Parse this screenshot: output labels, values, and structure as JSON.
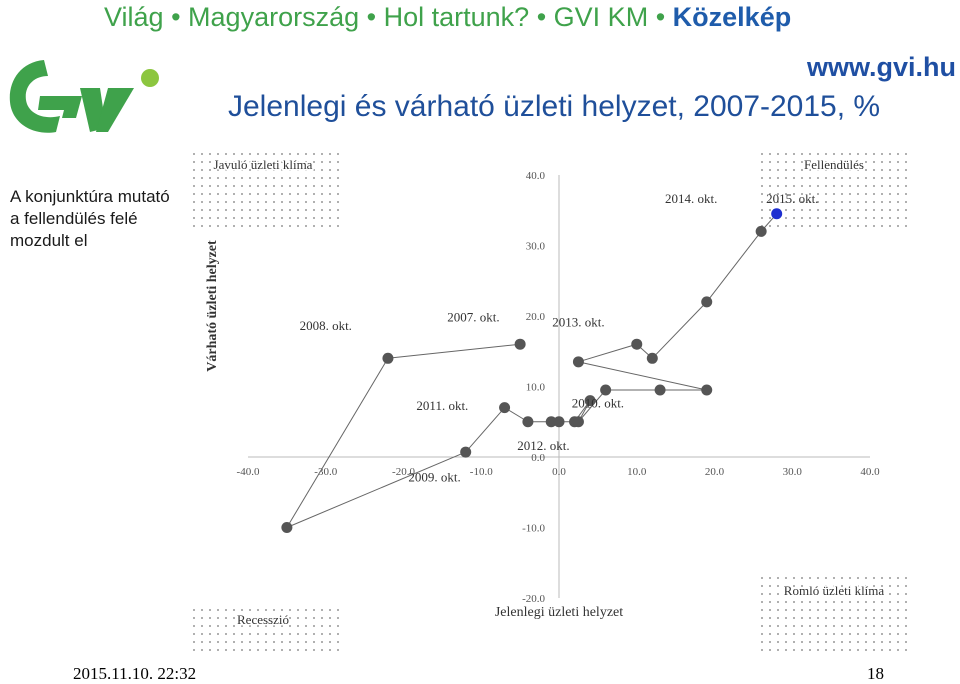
{
  "header": {
    "crumbs": [
      "Világ",
      "Magyarország",
      "Hol tartunk?",
      "GVI KM"
    ],
    "active_crumb": "Közelkép",
    "separator": "•",
    "url": "www.gvi.hu",
    "title": "Jelenlegi és várható üzleti helyzet, 2007-2015, %"
  },
  "sidebar": {
    "note": "A konjunktúra mutató\na fellendülés  felé\nmozdult el"
  },
  "footer": {
    "timestamp": "2015.11.10. 22:32",
    "page_number": "18"
  },
  "colors": {
    "brand_green": "#3fa24b",
    "title_blue": "#1f4f9a",
    "point_gray": "#555555",
    "last_point": "#1e2fd0"
  },
  "chart_data": {
    "type": "scatter",
    "xlabel": "Jelenlegi üzleti helyzet",
    "ylabel": "Várható üzleti helyzet",
    "xlim": [
      -40,
      40
    ],
    "ylim": [
      -20,
      40
    ],
    "x_ticks": [
      "-40.0",
      "-30.0",
      "-20.0",
      "-10.0",
      "0.0",
      "10.0",
      "20.0",
      "30.0",
      "40.0"
    ],
    "y_ticks": [
      "-20.0",
      "-10.0",
      "0.0",
      "10.0",
      "20.0",
      "30.0",
      "40.0"
    ],
    "quadrants": {
      "top_left": "Javuló üzleti klíma",
      "top_right": "Fellendülés",
      "bottom_left": "Recesszió",
      "bottom_right": "Romló üzleti klíma"
    },
    "points": [
      {
        "x": -5.0,
        "y": 16.0
      },
      {
        "x": -22.0,
        "y": 14.0
      },
      {
        "x": -35.0,
        "y": -10.0
      },
      {
        "x": -12.0,
        "y": 0.7
      },
      {
        "x": -7.0,
        "y": 7.0
      },
      {
        "x": -4.0,
        "y": 5.0
      },
      {
        "x": -1.0,
        "y": 5.0
      },
      {
        "x": 0.0,
        "y": 5.0
      },
      {
        "x": 2.0,
        "y": 5.0
      },
      {
        "x": 4.0,
        "y": 8.0
      },
      {
        "x": 2.5,
        "y": 5.0
      },
      {
        "x": 6.0,
        "y": 9.5
      },
      {
        "x": 13.0,
        "y": 9.5
      },
      {
        "x": 19.0,
        "y": 9.5
      },
      {
        "x": 2.5,
        "y": 13.5
      },
      {
        "x": 10.0,
        "y": 16.0
      },
      {
        "x": 12.0,
        "y": 14.0
      },
      {
        "x": 19.0,
        "y": 22.0
      },
      {
        "x": 26.0,
        "y": 32.0
      },
      {
        "x": 28.0,
        "y": 34.5
      }
    ],
    "annotations": [
      {
        "text": "2007. okt.",
        "x": -11.0,
        "y": 19.2
      },
      {
        "text": "2008. okt.",
        "x": -30.0,
        "y": 18.0
      },
      {
        "text": "2009. okt.",
        "x": -16.0,
        "y": -3.5
      },
      {
        "text": "2010. okt.",
        "x": 5.0,
        "y": 7.0
      },
      {
        "text": "2011. okt.",
        "x": -15.0,
        "y": 6.7
      },
      {
        "text": "2012. okt.",
        "x": -2.0,
        "y": 1.0
      },
      {
        "text": "2013. okt.",
        "x": 2.5,
        "y": 18.5
      },
      {
        "text": "2014. okt.",
        "x": 17.0,
        "y": 36.0
      },
      {
        "text": "2015. okt.",
        "x": 30.0,
        "y": 36.0
      }
    ]
  }
}
